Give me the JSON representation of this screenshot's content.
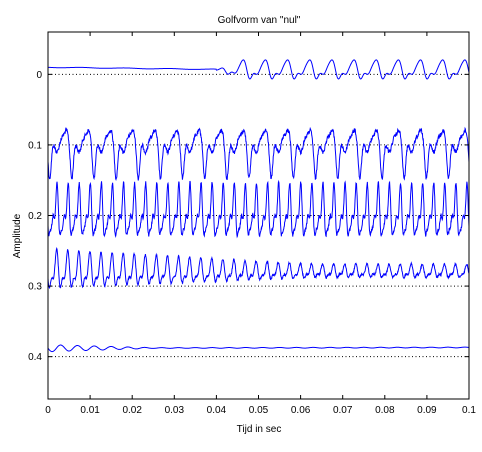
{
  "chart_data": {
    "type": "line",
    "title": "Golfvorm van \"nul\"",
    "xlabel": "Tijd in sec",
    "ylabel": "Amplitude",
    "xlim": [
      0,
      0.1
    ],
    "ylim": [
      0.46,
      -0.06
    ],
    "y_reversed": true,
    "grid": false,
    "baseline_style": "dotted",
    "line_color": "#0000ff",
    "xticks": [
      0,
      0.01,
      0.02,
      0.03,
      0.04,
      0.05,
      0.06,
      0.07,
      0.08,
      0.09,
      0.1
    ],
    "xtick_labels": [
      "0",
      "0.01",
      "0.02",
      "0.03",
      "0.04",
      "0.05",
      "0.06",
      "0.07",
      "0.08",
      "0.09",
      "0.1"
    ],
    "yticks": [
      0,
      0.1,
      0.2,
      0.3,
      0.4
    ],
    "ytick_labels": [
      "0",
      "0.1",
      "0.2",
      "0.3",
      "0.4"
    ],
    "series": [
      {
        "baseline": 0.0,
        "onset": 0.04,
        "freq_hz": 190,
        "amp_before": 0.0015,
        "amp_after": 0.011,
        "offset_before": -0.01,
        "offset_after": -0.006,
        "shape": "smooth"
      },
      {
        "baseline": 0.1,
        "onset": 0.0,
        "freq_hz": 190,
        "amp": 0.024,
        "offset": -0.002,
        "shape": "spiky"
      },
      {
        "baseline": 0.2,
        "onset": 0.0,
        "freq_hz": 380,
        "amp": 0.042,
        "offset": 0.0,
        "shape": "dense"
      },
      {
        "baseline": 0.3,
        "onset": 0.0,
        "freq_hz": 380,
        "amp": 0.032,
        "amp_end": 0.011,
        "offset": -0.02,
        "shape": "decaying"
      },
      {
        "baseline": 0.4,
        "onset": 0.0,
        "freq_hz": 250,
        "amp": 0.005,
        "amp_end": 0.0005,
        "offset": -0.012,
        "shape": "flat"
      }
    ]
  }
}
